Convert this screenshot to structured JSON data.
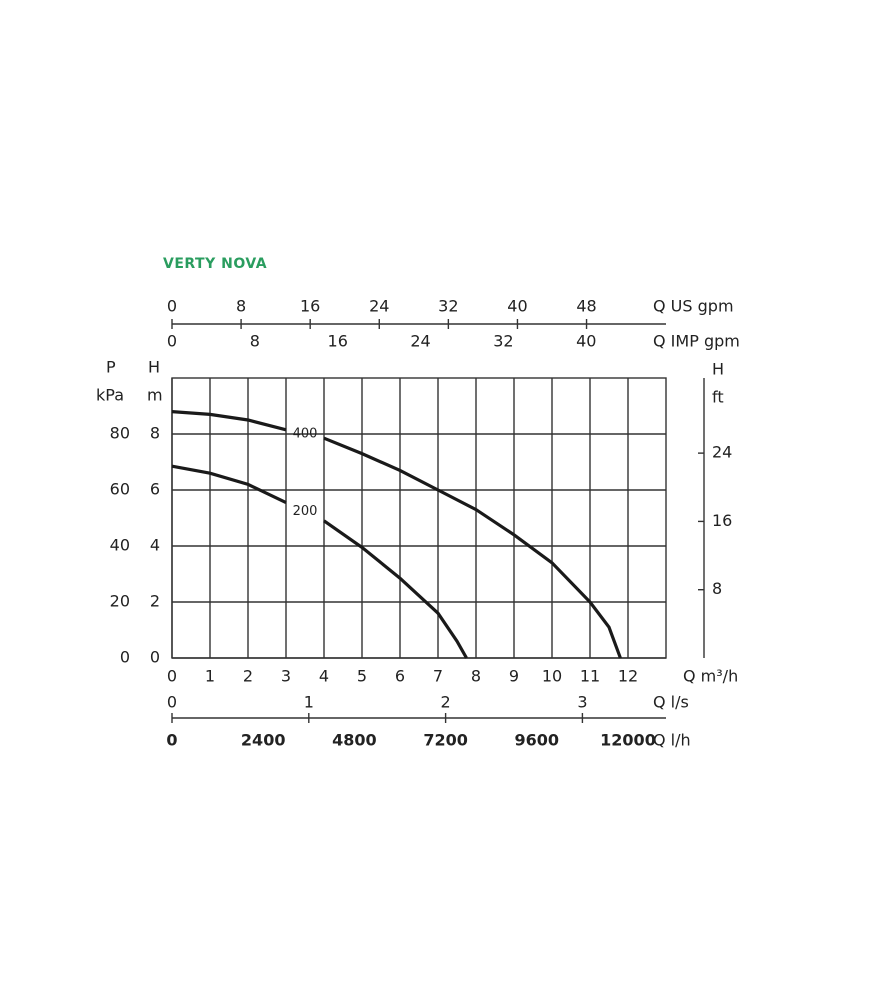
{
  "chart_data": {
    "type": "line",
    "title": "VERTY NOVA",
    "xlim": [
      0,
      13
    ],
    "xticks": [
      0,
      1,
      2,
      3,
      4,
      5,
      6,
      7,
      8,
      9,
      10,
      11,
      12
    ],
    "x_label": "Q m³/h",
    "ylim": [
      0,
      10
    ],
    "yticks": [
      0,
      2,
      4,
      6,
      8
    ],
    "y_label_top": "H",
    "y_label_unit": "m",
    "p_axis": {
      "label_top": "P",
      "label_unit": "kPa",
      "lim": [
        0,
        100
      ],
      "ticks": [
        0,
        20,
        40,
        60,
        80
      ]
    },
    "y2lim": [
      0,
      32.8
    ],
    "y2ticks": [
      8,
      16,
      24
    ],
    "y2_label_top": "H",
    "y2_label_unit": "ft",
    "top_axes": [
      {
        "label": "Q US gpm",
        "lim": [
          0,
          57.2
        ],
        "ticks": [
          0,
          8,
          16,
          24,
          32,
          40,
          48
        ]
      },
      {
        "label": "Q IMP gpm",
        "lim": [
          0,
          47.7
        ],
        "ticks": [
          0,
          8,
          16,
          24,
          32,
          40
        ]
      }
    ],
    "bottom_axes": [
      {
        "label": "Q l/s",
        "lim": [
          0,
          3.611
        ],
        "ticks": [
          0,
          1,
          2,
          3
        ]
      },
      {
        "label": "Q l/h",
        "lim": [
          0,
          13000
        ],
        "ticks": [
          0,
          2400,
          4800,
          7200,
          9600,
          12000
        ]
      }
    ],
    "grid": true,
    "series": [
      {
        "name": "400",
        "color": "#1a1a1a",
        "x": [
          0,
          1,
          2,
          3,
          3.5,
          4,
          5,
          6,
          7,
          8,
          9,
          10,
          11,
          11.5,
          11.8
        ],
        "values": [
          8.8,
          8.7,
          8.5,
          8.15,
          null,
          7.85,
          7.3,
          6.7,
          6.0,
          5.3,
          4.4,
          3.4,
          2.0,
          1.1,
          0
        ]
      },
      {
        "name": "200",
        "color": "#1a1a1a",
        "x": [
          0,
          1,
          2,
          3,
          3.5,
          4,
          5,
          6,
          7,
          7.5,
          7.75
        ],
        "values": [
          6.85,
          6.6,
          6.2,
          5.55,
          null,
          4.9,
          3.95,
          2.85,
          1.6,
          0.6,
          0
        ]
      }
    ]
  }
}
